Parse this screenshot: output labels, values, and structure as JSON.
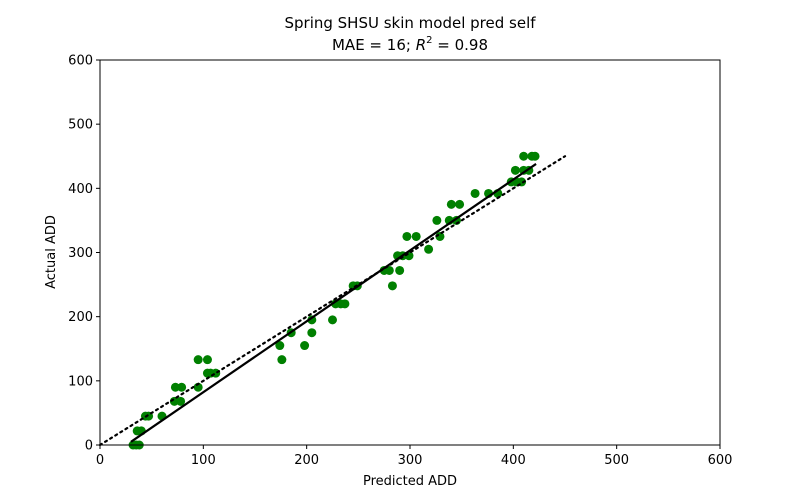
{
  "chart_data": {
    "type": "scatter",
    "title": "Spring SHSU skin model pred self",
    "subtitle_prefix": "MAE = 16; ",
    "subtitle_r": "R",
    "subtitle_sup": "2",
    "subtitle_suffix": " = 0.98",
    "xlabel": "Predicted ADD",
    "ylabel": "Actual ADD",
    "xlim": [
      0,
      600
    ],
    "ylim": [
      0,
      600
    ],
    "xticks": [
      0,
      100,
      200,
      300,
      400,
      500,
      600
    ],
    "yticks": [
      0,
      100,
      200,
      300,
      400,
      500,
      600
    ],
    "grid": false,
    "point_color": "#008000",
    "fit_color": "#000000",
    "identity_color": "#000000",
    "series": [
      {
        "type": "scatter",
        "points": [
          [
            32,
            0
          ],
          [
            35,
            0
          ],
          [
            38,
            0
          ],
          [
            36,
            22
          ],
          [
            40,
            22
          ],
          [
            44,
            45
          ],
          [
            47,
            45
          ],
          [
            60,
            45
          ],
          [
            72,
            68
          ],
          [
            78,
            68
          ],
          [
            73,
            90
          ],
          [
            79,
            90
          ],
          [
            95,
            90
          ],
          [
            95,
            133
          ],
          [
            104,
            133
          ],
          [
            104,
            112
          ],
          [
            107,
            112
          ],
          [
            112,
            112
          ],
          [
            174,
            155
          ],
          [
            176,
            133
          ],
          [
            185,
            175
          ],
          [
            198,
            155
          ],
          [
            205,
            175
          ],
          [
            205,
            195
          ],
          [
            225,
            195
          ],
          [
            228,
            220
          ],
          [
            233,
            220
          ],
          [
            237,
            220
          ],
          [
            245,
            248
          ],
          [
            249,
            248
          ],
          [
            275,
            272
          ],
          [
            280,
            272
          ],
          [
            283,
            248
          ],
          [
            290,
            272
          ],
          [
            288,
            295
          ],
          [
            293,
            295
          ],
          [
            299,
            295
          ],
          [
            297,
            325
          ],
          [
            306,
            325
          ],
          [
            318,
            305
          ],
          [
            326,
            350
          ],
          [
            329,
            325
          ],
          [
            338,
            350
          ],
          [
            345,
            350
          ],
          [
            340,
            375
          ],
          [
            348,
            375
          ],
          [
            363,
            392
          ],
          [
            376,
            392
          ],
          [
            385,
            392
          ],
          [
            398,
            410
          ],
          [
            403,
            410
          ],
          [
            408,
            410
          ],
          [
            402,
            428
          ],
          [
            410,
            428
          ],
          [
            415,
            428
          ],
          [
            410,
            450
          ],
          [
            418,
            450
          ],
          [
            421,
            450
          ]
        ]
      },
      {
        "type": "line",
        "style": "solid",
        "x": [
          30,
          422
        ],
        "y": [
          5,
          438
        ]
      },
      {
        "type": "line",
        "style": "dotted",
        "x": [
          0,
          450
        ],
        "y": [
          0,
          450
        ]
      }
    ]
  }
}
